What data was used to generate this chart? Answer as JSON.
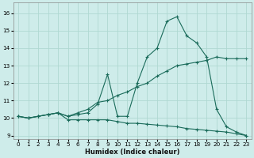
{
  "xlabel": "Humidex (Indice chaleur)",
  "xlim": [
    -0.5,
    23.5
  ],
  "ylim": [
    8.8,
    16.6
  ],
  "yticks": [
    9,
    10,
    11,
    12,
    13,
    14,
    15,
    16
  ],
  "xticks": [
    0,
    1,
    2,
    3,
    4,
    5,
    6,
    7,
    8,
    9,
    10,
    11,
    12,
    13,
    14,
    15,
    16,
    17,
    18,
    19,
    20,
    21,
    22,
    23
  ],
  "background_color": "#ceecea",
  "grid_color": "#afd8d2",
  "line_color": "#1a6b5a",
  "series": [
    {
      "x": [
        0,
        1,
        2,
        3,
        4,
        5,
        6,
        7,
        8,
        9,
        10,
        11,
        12,
        13,
        14,
        15,
        16,
        17,
        18,
        19,
        20,
        21,
        22,
        23
      ],
      "y": [
        10.1,
        10.0,
        10.1,
        10.2,
        10.3,
        10.1,
        10.2,
        10.3,
        10.8,
        12.5,
        10.1,
        10.1,
        12.0,
        13.5,
        14.0,
        15.55,
        15.8,
        14.7,
        14.3,
        13.5,
        10.5,
        9.5,
        9.2,
        9.0
      ]
    },
    {
      "x": [
        0,
        1,
        2,
        3,
        4,
        5,
        6,
        7,
        8,
        9,
        10,
        11,
        12,
        13,
        14,
        15,
        16,
        17,
        18,
        19,
        20,
        21,
        22,
        23
      ],
      "y": [
        10.1,
        10.0,
        10.1,
        10.2,
        10.3,
        10.1,
        10.3,
        10.5,
        10.9,
        11.0,
        11.3,
        11.5,
        11.8,
        12.0,
        12.4,
        12.7,
        13.0,
        13.1,
        13.2,
        13.3,
        13.5,
        13.4,
        13.4,
        13.4
      ]
    },
    {
      "x": [
        0,
        1,
        2,
        3,
        4,
        5,
        6,
        7,
        8,
        9,
        10,
        11,
        12,
        13,
        14,
        15,
        16,
        17,
        18,
        19,
        20,
        21,
        22,
        23
      ],
      "y": [
        10.1,
        10.0,
        10.1,
        10.2,
        10.3,
        9.9,
        9.9,
        9.9,
        9.9,
        9.9,
        9.8,
        9.7,
        9.7,
        9.65,
        9.6,
        9.55,
        9.5,
        9.4,
        9.35,
        9.3,
        9.25,
        9.2,
        9.1,
        9.0
      ]
    }
  ]
}
